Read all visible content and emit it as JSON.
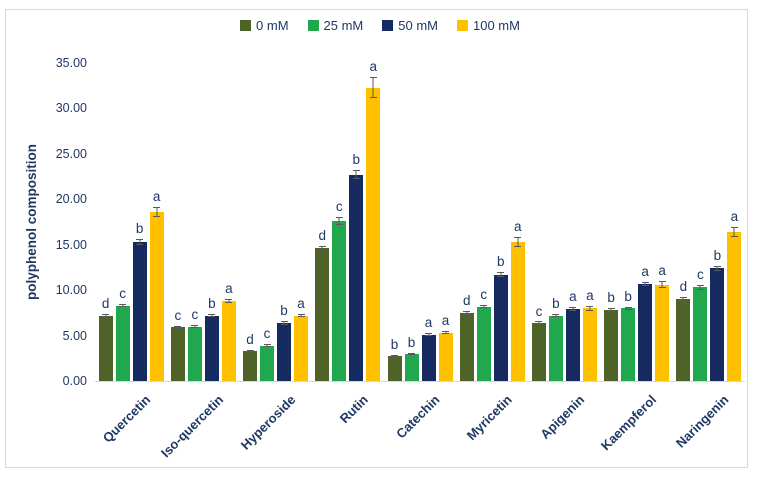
{
  "figure": {
    "background_color": "#ffffff",
    "border_color": "#d9d9d9",
    "text_color": "#1f3864"
  },
  "chart_data": {
    "type": "bar",
    "title": "",
    "xlabel": "",
    "ylabel": "polyphenol composition",
    "ylim": [
      0,
      35
    ],
    "ytick_step": 5,
    "ytick_decimals": 2,
    "grid": false,
    "legend_position": "top-center",
    "baseline_color": "#d9d9d9",
    "error_bar_color": "#595959",
    "categories": [
      "Quercetin",
      "Iso-quercetin",
      "Hyperoside",
      "Rutin",
      "Catechin",
      "Myricetin",
      "Apigenin",
      "Kaempferol",
      "Naringenin"
    ],
    "series": [
      {
        "name": "0 mM",
        "color": "#4f6228",
        "values": [
          7.2,
          5.9,
          3.3,
          14.6,
          2.8,
          7.5,
          6.4,
          7.8,
          9.0
        ],
        "errors": [
          0.2,
          0.15,
          0.1,
          0.3,
          0.1,
          0.2,
          0.15,
          0.2,
          0.3
        ],
        "letters": [
          "d",
          "c",
          "d",
          "d",
          "b",
          "d",
          "c",
          "b",
          "d"
        ]
      },
      {
        "name": "25 mM",
        "color": "#1fa84e",
        "values": [
          8.3,
          6.0,
          3.9,
          17.6,
          3.0,
          8.2,
          7.2,
          8.0,
          10.3
        ],
        "errors": [
          0.2,
          0.15,
          0.15,
          0.4,
          0.1,
          0.2,
          0.15,
          0.15,
          0.25
        ],
        "letters": [
          "c",
          "c",
          "c",
          "c",
          "b",
          "c",
          "b",
          "b",
          "c"
        ]
      },
      {
        "name": "50 mM",
        "color": "#152a60",
        "values": [
          15.3,
          7.2,
          6.4,
          22.7,
          5.1,
          11.7,
          7.9,
          10.7,
          12.4
        ],
        "errors": [
          0.3,
          0.2,
          0.2,
          0.5,
          0.15,
          0.25,
          0.2,
          0.2,
          0.3
        ],
        "letters": [
          "b",
          "b",
          "b",
          "b",
          "a",
          "b",
          "a",
          "a",
          "b"
        ]
      },
      {
        "name": "100 mM",
        "color": "#ffc000",
        "values": [
          18.6,
          8.8,
          7.2,
          32.3,
          5.3,
          15.3,
          8.0,
          10.6,
          16.4
        ],
        "errors": [
          0.5,
          0.25,
          0.2,
          1.2,
          0.15,
          0.5,
          0.25,
          0.4,
          0.5
        ],
        "letters": [
          "a",
          "a",
          "a",
          "a",
          "a",
          "a",
          "a",
          "a",
          "a"
        ]
      }
    ]
  }
}
